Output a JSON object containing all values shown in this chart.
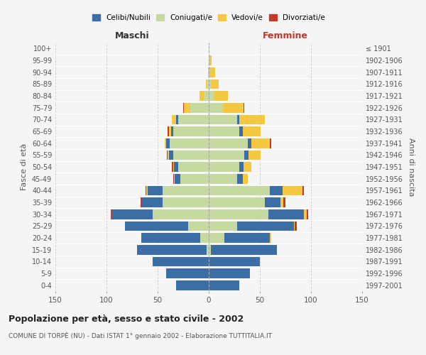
{
  "age_groups": [
    "0-4",
    "5-9",
    "10-14",
    "15-19",
    "20-24",
    "25-29",
    "30-34",
    "35-39",
    "40-44",
    "45-49",
    "50-54",
    "55-59",
    "60-64",
    "65-69",
    "70-74",
    "75-79",
    "80-84",
    "85-89",
    "90-94",
    "95-99",
    "100+"
  ],
  "birth_years": [
    "1997-2001",
    "1992-1996",
    "1987-1991",
    "1982-1986",
    "1977-1981",
    "1972-1976",
    "1967-1971",
    "1962-1966",
    "1957-1961",
    "1952-1956",
    "1947-1951",
    "1942-1946",
    "1937-1941",
    "1932-1936",
    "1927-1931",
    "1922-1926",
    "1917-1921",
    "1912-1916",
    "1907-1911",
    "1902-1906",
    "≤ 1901"
  ],
  "males": {
    "celibi": [
      32,
      42,
      55,
      68,
      58,
      62,
      40,
      20,
      15,
      5,
      4,
      4,
      4,
      2,
      2,
      0,
      0,
      0,
      0,
      0,
      0
    ],
    "coniugati": [
      0,
      0,
      0,
      2,
      8,
      20,
      55,
      45,
      45,
      28,
      30,
      35,
      38,
      35,
      30,
      18,
      5,
      2,
      1,
      0,
      0
    ],
    "vedovi": [
      0,
      0,
      0,
      0,
      0,
      0,
      0,
      0,
      1,
      1,
      1,
      1,
      1,
      2,
      4,
      6,
      4,
      1,
      0,
      0,
      0
    ],
    "divorziati": [
      0,
      0,
      0,
      0,
      0,
      0,
      1,
      2,
      1,
      1,
      1,
      1,
      0,
      1,
      0,
      1,
      0,
      0,
      0,
      0,
      0
    ]
  },
  "females": {
    "nubili": [
      30,
      40,
      50,
      65,
      45,
      55,
      35,
      15,
      12,
      5,
      4,
      4,
      4,
      3,
      2,
      0,
      0,
      0,
      0,
      0,
      0
    ],
    "coniugate": [
      0,
      0,
      0,
      2,
      15,
      28,
      58,
      55,
      60,
      28,
      30,
      35,
      38,
      30,
      28,
      14,
      5,
      2,
      1,
      1,
      0
    ],
    "vedove": [
      0,
      0,
      0,
      0,
      1,
      1,
      3,
      3,
      20,
      5,
      8,
      12,
      18,
      18,
      25,
      20,
      14,
      8,
      5,
      2,
      0
    ],
    "divorziate": [
      0,
      0,
      0,
      0,
      0,
      2,
      1,
      2,
      1,
      0,
      0,
      0,
      1,
      0,
      0,
      1,
      0,
      0,
      0,
      0,
      0
    ]
  },
  "colors": {
    "celibi_nubili": "#3a6ea5",
    "coniugati": "#c5d9a0",
    "vedovi": "#f5c842",
    "divorziati": "#c0392b"
  },
  "xlim": 150,
  "title": "Popolazione per età, sesso e stato civile - 2002",
  "subtitle": "COMUNE DI TORPÈ (NU) - Dati ISTAT 1° gennaio 2002 - Elaborazione TUTTITALIA.IT",
  "ylabel_left": "Fasce di età",
  "ylabel_right": "Anni di nascita",
  "xlabel_left": "Maschi",
  "xlabel_right": "Femmine",
  "legend_labels": [
    "Celibi/Nubili",
    "Coniugati/e",
    "Vedovi/e",
    "Divorziati/e"
  ],
  "background_color": "#f5f5f5",
  "grid_color": "#cccccc"
}
